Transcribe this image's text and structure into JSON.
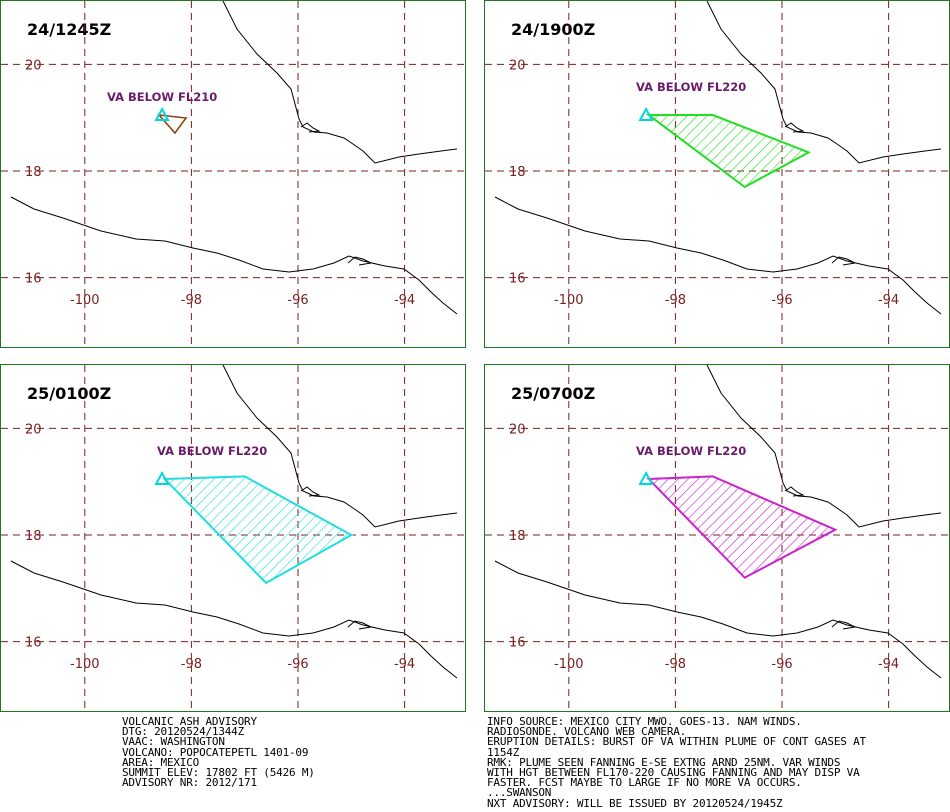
{
  "colors": {
    "grid": "#7a1e1e",
    "coast": "#000000",
    "volcano": "#00d8d8",
    "labelText": "#6a1b6a",
    "frame": "#1f7a1f"
  },
  "panels": [
    {
      "title": "24/1245Z",
      "label": "VA BELOW FL210",
      "shape": "triangle",
      "color": "#8b4513"
    },
    {
      "title": "24/1900Z",
      "label": "VA BELOW FL220",
      "shape": "polygon",
      "color": "#22dd22",
      "polygon": [
        [
          -98.5,
          19.05
        ],
        [
          -97.3,
          19.05
        ],
        [
          -95.5,
          18.35
        ],
        [
          -96.7,
          17.7
        ]
      ]
    },
    {
      "title": "25/0100Z",
      "label": "VA BELOW FL220",
      "shape": "polygon",
      "color": "#22dddd",
      "polygon": [
        [
          -98.5,
          19.05
        ],
        [
          -97.0,
          19.1
        ],
        [
          -95.0,
          18.0
        ],
        [
          -96.6,
          17.1
        ]
      ]
    },
    {
      "title": "25/0700Z",
      "label": "VA BELOW FL220",
      "shape": "polygon",
      "color": "#cc22cc",
      "polygon": [
        [
          -98.5,
          19.05
        ],
        [
          -97.3,
          19.1
        ],
        [
          -95.0,
          18.1
        ],
        [
          -96.7,
          17.2
        ]
      ]
    }
  ],
  "axes": {
    "lat_ticks": [
      20,
      18,
      16
    ],
    "lon_ticks": [
      -100,
      -98,
      -96,
      -94
    ]
  },
  "advisory_left": [
    "VOLCANIC ASH ADVISORY",
    "DTG: 20120524/1344Z",
    "VAAC: WASHINGTON",
    "VOLCANO: POPOCATEPETL 1401-09",
    "AREA: MEXICO",
    "SUMMIT ELEV: 17802 FT (5426 M)",
    "ADVISORY NR: 2012/171"
  ],
  "advisory_right": [
    "INFO SOURCE: MEXICO CITY MWO. GOES-13. NAM WINDS.",
    "RADIOSONDE. VOLCANO WEB CAMERA.",
    "ERUPTION DETAILS: BURST OF VA WITHIN PLUME OF CONT GASES AT",
    "1154Z",
    "RMK: PLUME SEEN FANNING E-SE EXTNG ARND 25NM. VAR WINDS",
    "WITH HGT BETWEEN FL170-220 CAUSING FANNING AND MAY DISP VA",
    "FASTER. FCST MAYBE TO LARGE IF NO MORE VA OCCURS.",
    "...SWANSON",
    "NXT ADVISORY: WILL BE ISSUED BY 20120524/1945Z"
  ]
}
